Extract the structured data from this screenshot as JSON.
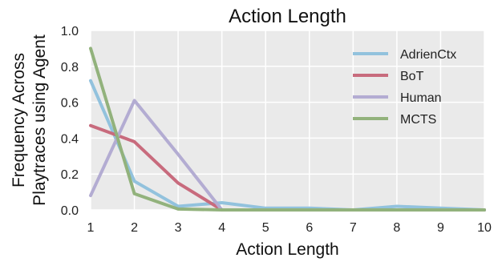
{
  "chart_data": {
    "type": "line",
    "title": "Action Length",
    "xlabel": "Action Length",
    "ylabel_lines": [
      "Frequency Across",
      "Playtraces using Agent"
    ],
    "x": [
      1,
      2,
      3,
      4,
      5,
      6,
      7,
      8,
      9,
      10
    ],
    "xlim": [
      1,
      10
    ],
    "ylim": [
      0,
      1.0
    ],
    "yticks": [
      "0.0",
      "0.2",
      "0.4",
      "0.6",
      "0.8",
      "1.0"
    ],
    "xticks": [
      "1",
      "2",
      "3",
      "4",
      "5",
      "6",
      "7",
      "8",
      "9",
      "10"
    ],
    "grid": true,
    "legend_position": "top-right",
    "series": [
      {
        "name": "AdrienCtx",
        "color": "#92c2dd",
        "values": [
          0.72,
          0.16,
          0.02,
          0.04,
          0.01,
          0.01,
          0.0,
          0.02,
          0.01,
          0.0
        ]
      },
      {
        "name": "BoT",
        "color": "#c86b7d",
        "values": [
          0.47,
          0.38,
          0.15,
          0.0,
          0.0,
          0.0,
          0.0,
          0.0,
          0.0,
          0.0
        ]
      },
      {
        "name": "Human",
        "color": "#b3acd2",
        "values": [
          0.08,
          0.61,
          0.31,
          0.0,
          0.0,
          0.0,
          0.0,
          0.0,
          0.0,
          0.0
        ]
      },
      {
        "name": "MCTS",
        "color": "#92b27c",
        "values": [
          0.9,
          0.09,
          0.005,
          0.0,
          0.0,
          0.0,
          0.0,
          0.0,
          0.0,
          0.0
        ]
      }
    ]
  }
}
